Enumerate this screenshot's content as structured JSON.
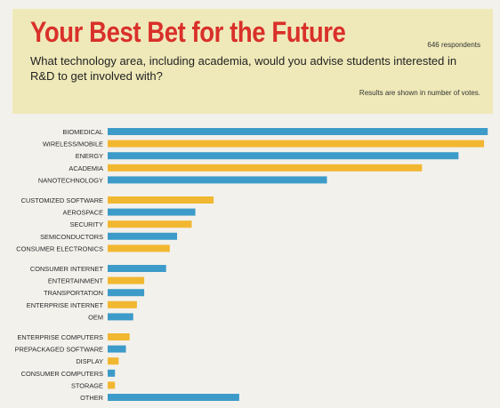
{
  "header": {
    "title": "Your Best Bet for the Future",
    "respondents": "646 respondents",
    "question": "What technology area, including academia, would you advise students interested in R&D to get involved with?",
    "note": "Results are shown in number of votes."
  },
  "colors": {
    "blue": "#3d9bc9",
    "yellow": "#f2b731",
    "header_bg": "#efe9b9",
    "title": "#d9302a"
  },
  "chart_data": {
    "type": "bar",
    "orientation": "horizontal",
    "xlim": [
      0,
      102
    ],
    "x_ticks": [
      "0",
      "20",
      "40",
      "60",
      "80",
      "100"
    ],
    "groups": [
      [
        {
          "label": "BIOMEDICAL",
          "value": 104,
          "color": "blue"
        },
        {
          "label": "WIRELESS/MOBILE",
          "value": 103,
          "color": "yellow"
        },
        {
          "label": "ENERGY",
          "value": 96,
          "color": "blue"
        },
        {
          "label": "ACADEMIA",
          "value": 86,
          "color": "yellow"
        },
        {
          "label": "NANOTECHNOLOGY",
          "value": 60,
          "color": "blue"
        }
      ],
      [
        {
          "label": "CUSTOMIZED SOFTWARE",
          "value": 29,
          "color": "yellow"
        },
        {
          "label": "AEROSPACE",
          "value": 24,
          "color": "blue"
        },
        {
          "label": "SECURITY",
          "value": 23,
          "color": "yellow"
        },
        {
          "label": "SEMICONDUCTORS",
          "value": 19,
          "color": "blue"
        },
        {
          "label": "CONSUMER ELECTRONICS",
          "value": 17,
          "color": "yellow"
        }
      ],
      [
        {
          "label": "CONSUMER INTERNET",
          "value": 16,
          "color": "blue"
        },
        {
          "label": "ENTERTAINMENT",
          "value": 10,
          "color": "yellow"
        },
        {
          "label": "TRANSPORTATION",
          "value": 10,
          "color": "blue"
        },
        {
          "label": "ENTERPRISE INTERNET",
          "value": 8,
          "color": "yellow"
        },
        {
          "label": "OEM",
          "value": 7,
          "color": "blue"
        }
      ],
      [
        {
          "label": "ENTERPRISE COMPUTERS",
          "value": 6,
          "color": "yellow"
        },
        {
          "label": "PREPACKAGED SOFTWARE",
          "value": 5,
          "color": "blue"
        },
        {
          "label": "DISPLAY",
          "value": 3,
          "color": "yellow"
        },
        {
          "label": "CONSUMER COMPUTERS",
          "value": 2,
          "color": "blue"
        },
        {
          "label": "STORAGE",
          "value": 2,
          "color": "yellow"
        },
        {
          "label": "OTHER",
          "value": 36,
          "color": "blue"
        }
      ]
    ]
  }
}
